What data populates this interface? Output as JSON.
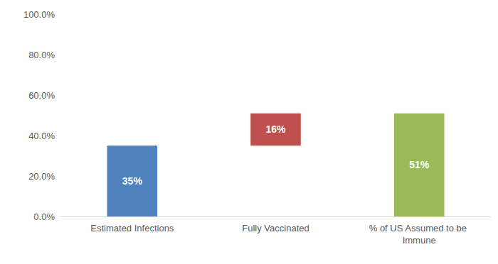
{
  "chart_data": {
    "type": "waterfall",
    "categories": [
      "Estimated Infections",
      "Fully Vaccinated",
      "% of US Assumed to be Immune"
    ],
    "values": [
      35,
      16,
      51
    ],
    "value_labels": [
      "35%",
      "16%",
      "51%"
    ],
    "colors": [
      "#4f81bd",
      "#c0504d",
      "#9bbb59"
    ],
    "ylim": [
      0,
      100
    ],
    "yticks": [
      {
        "value": 0,
        "label": "0.0%"
      },
      {
        "value": 20,
        "label": "20.0%"
      },
      {
        "value": 40,
        "label": "40.0%"
      },
      {
        "value": 60,
        "label": "60.0%"
      },
      {
        "value": 80,
        "label": "80.0%"
      },
      {
        "value": 100,
        "label": "100.0%"
      }
    ],
    "grid": false,
    "data_labels": true
  }
}
